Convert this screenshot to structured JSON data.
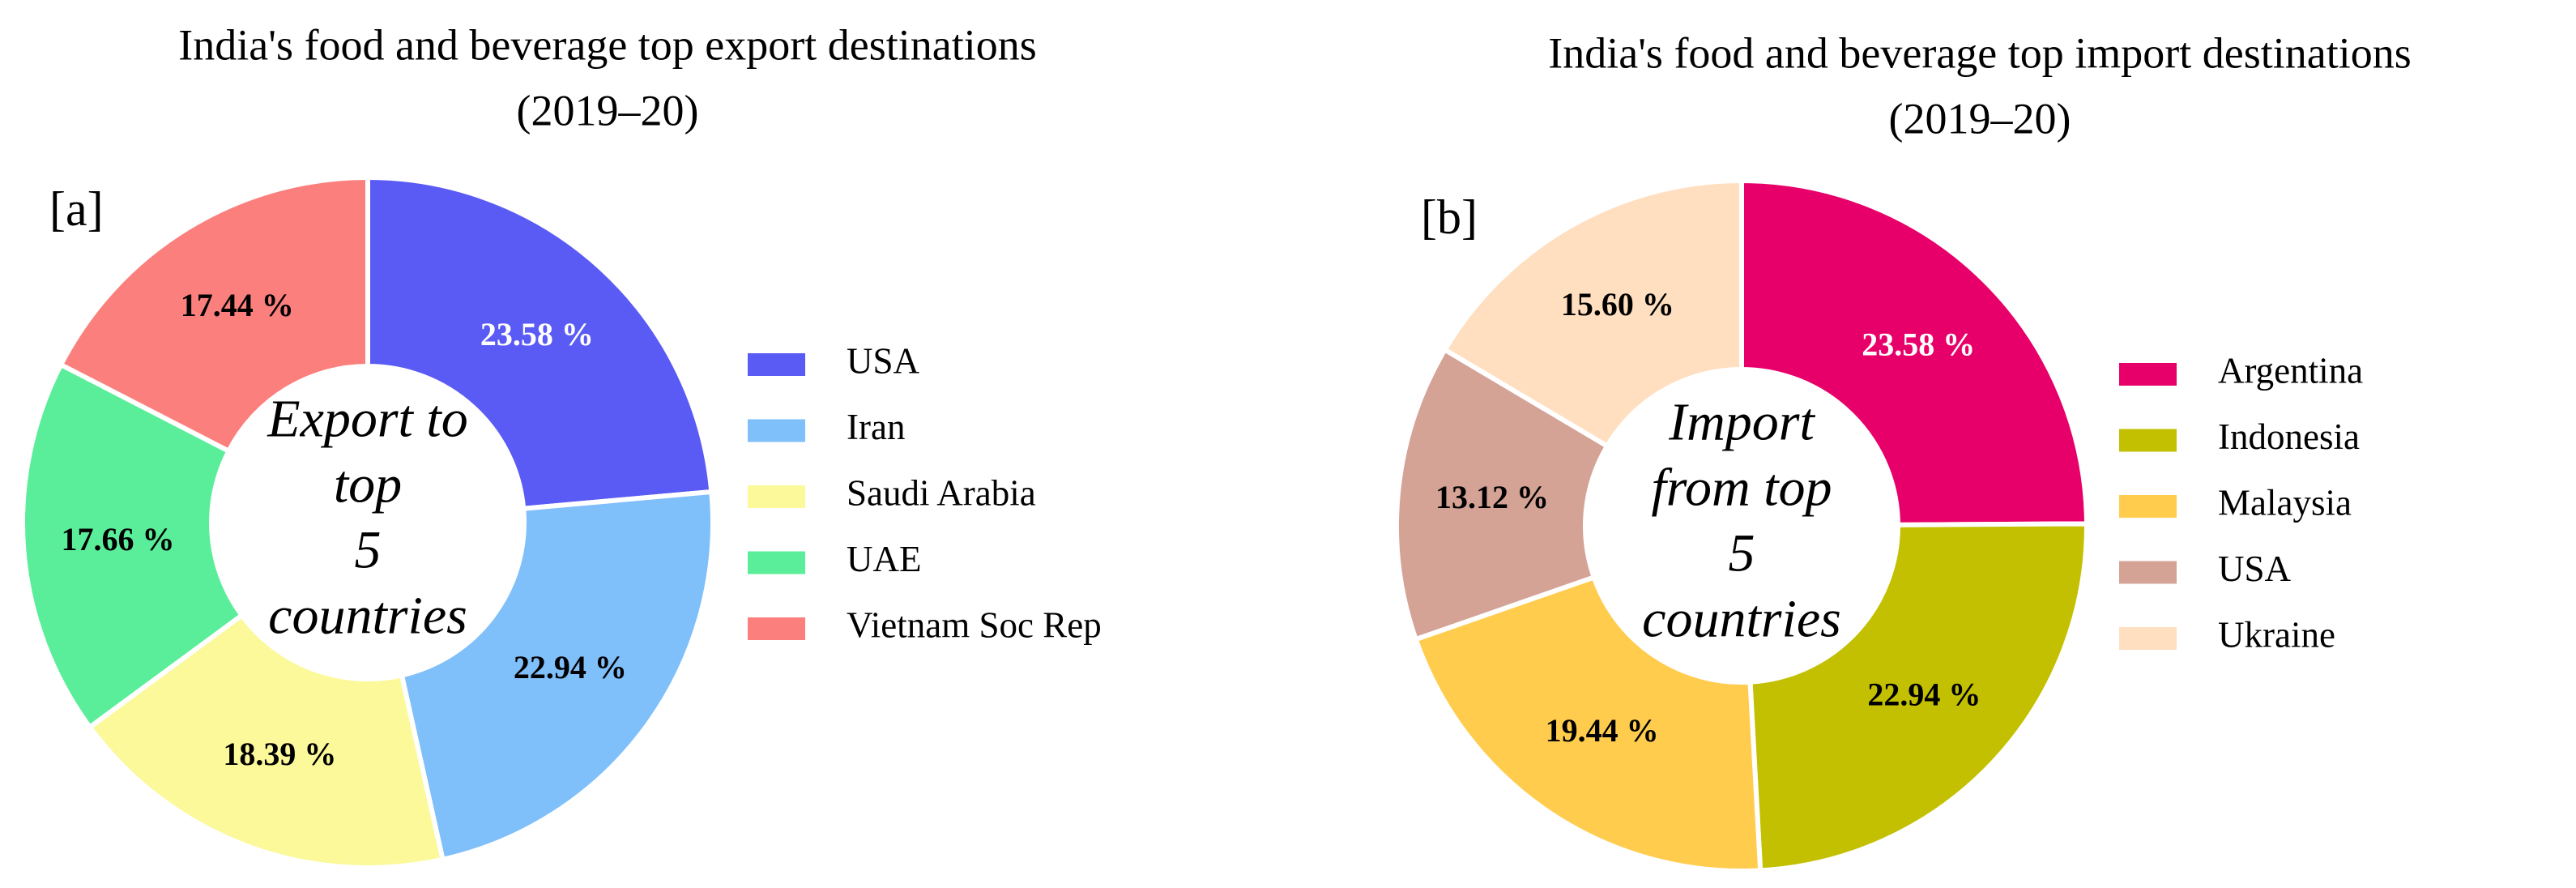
{
  "chart_data": [
    {
      "type": "pie",
      "title": "India's food and beverage top export destinations",
      "subtitle": "(2019–20)",
      "panel_label": "[a]",
      "center_text": [
        "Export to",
        "top",
        "5",
        "countries"
      ],
      "categories": [
        "USA",
        "Iran",
        "Saudi Arabia",
        "UAE",
        "Vietnam Soc Rep"
      ],
      "values": [
        23.58,
        22.94,
        18.39,
        17.66,
        17.44
      ],
      "value_labels": [
        "23.58 %",
        "22.94 %",
        "18.39 %",
        "17.66 %",
        "17.44 %"
      ],
      "colors": [
        "#5a5af5",
        "#7fbffa",
        "#fbf99a",
        "#5aee9a",
        "#fb807d"
      ],
      "legend": "right"
    },
    {
      "type": "pie",
      "title": "India's food and beverage top import destinations",
      "subtitle": "(2019–20)",
      "panel_label": "[b]",
      "center_text": [
        "Import",
        "from top",
        "5",
        "countries"
      ],
      "categories": [
        "Argentina",
        "Indonesia",
        "Malaysia",
        "USA",
        "Ukraine"
      ],
      "values": [
        23.58,
        22.94,
        19.44,
        13.12,
        15.6
      ],
      "value_labels": [
        "23.58 %",
        "22.94 %",
        "19.44 %",
        "13.12 %",
        "15.60 %"
      ],
      "colors": [
        "#e8006a",
        "#c2c000",
        "#ffcc4d",
        "#d4a396",
        "#ffdfbf"
      ],
      "legend": "right"
    }
  ]
}
